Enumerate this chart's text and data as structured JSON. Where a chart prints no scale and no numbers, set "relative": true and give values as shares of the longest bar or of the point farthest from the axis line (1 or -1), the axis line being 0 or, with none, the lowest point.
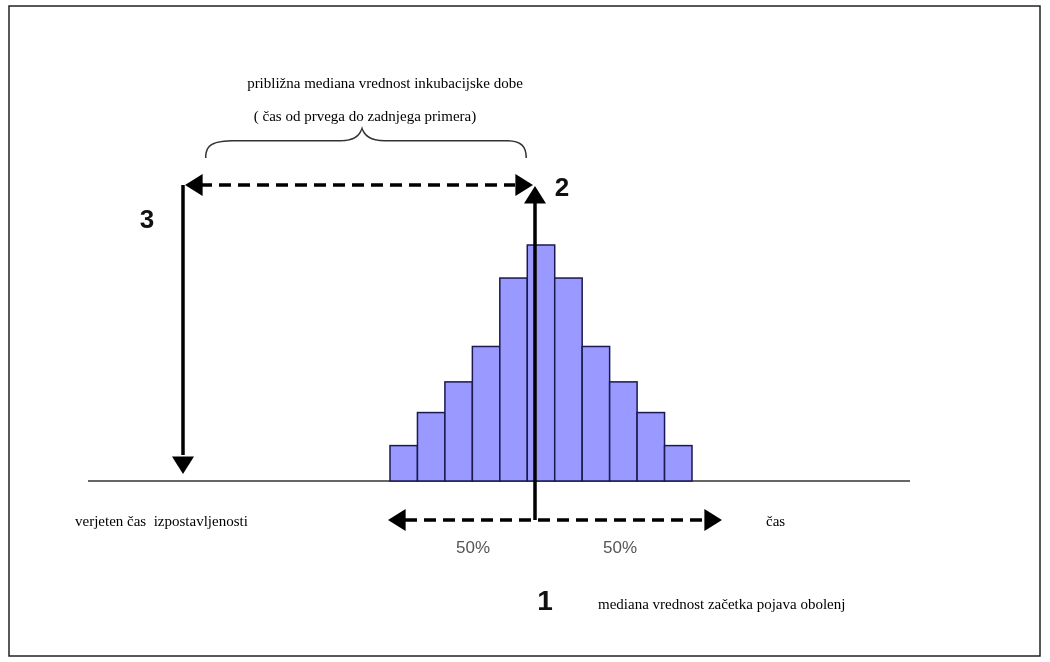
{
  "chart_data": {
    "type": "bar",
    "relative": true,
    "categories": [
      null,
      null,
      null,
      null,
      null,
      null,
      null,
      null,
      null,
      null,
      null
    ],
    "values": [
      0.15,
      0.29,
      0.42,
      0.57,
      0.86,
      1,
      0.86,
      0.57,
      0.42,
      0.29,
      0.15
    ],
    "color": "#9999ff",
    "annotations": [
      "približna mediana vrednost inkubacijske dobe",
      "( čas od prvega do zadnjega primera)",
      "3",
      "2",
      "verjeten čas  izpostavljenosti",
      "čas",
      "50%",
      "50%",
      "1",
      "mediana vrednost začetka pojava obolenj"
    ]
  }
}
